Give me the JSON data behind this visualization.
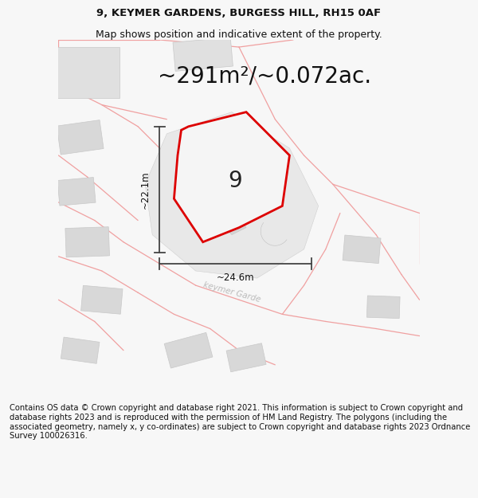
{
  "title_line1": "9, KEYMER GARDENS, BURGESS HILL, RH15 0AF",
  "title_line2": "Map shows position and indicative extent of the property.",
  "area_text": "~291m²/~0.072ac.",
  "number_label": "9",
  "dim_width": "~24.6m",
  "dim_height": "~22.1m",
  "footer": "Contains OS data © Crown copyright and database right 2021. This information is subject to Crown copyright and database rights 2023 and is reproduced with the permission of HM Land Registry. The polygons (including the associated geometry, namely x, y co-ordinates) are subject to Crown copyright and database rights 2023 Ordnance Survey 100026316.",
  "bg_color": "#f7f7f7",
  "map_bg": "#ffffff",
  "road_color": "#f0a0a0",
  "building_fill": "#d8d8d8",
  "building_edge": "#cccccc",
  "plot_outline": "#dd0000",
  "plot_fill": "#eeeeee",
  "inner_fill": "#d8d8d8",
  "dim_line_color": "#444444",
  "road_label_color": "#bbbbbb",
  "area_font_size": 20,
  "number_font_size": 20,
  "title_font_size": 9.5,
  "footer_font_size": 7.2,
  "separator_color": "#cccccc"
}
